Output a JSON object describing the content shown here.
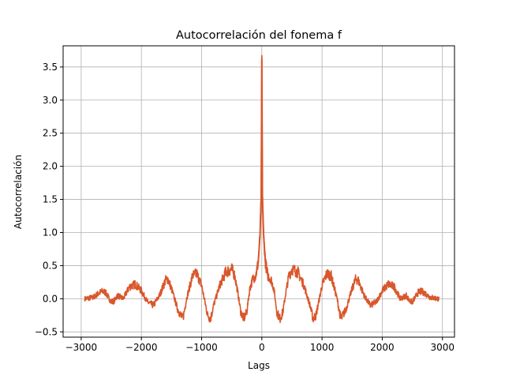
{
  "chart_data": {
    "type": "line",
    "title": "Autocorrelación del fonema f",
    "xlabel": "Lags",
    "ylabel": "Autocorrelación",
    "xlim": [
      -3300,
      3200
    ],
    "ylim": [
      -0.58,
      3.82
    ],
    "xticks": [
      -3000,
      -2000,
      -1000,
      0,
      1000,
      2000,
      3000
    ],
    "xtick_labels": [
      "−3000",
      "−2000",
      "−1000",
      "0",
      "1000",
      "2000",
      "3000"
    ],
    "yticks": [
      -0.5,
      0.0,
      0.5,
      1.0,
      1.5,
      2.0,
      2.5,
      3.0,
      3.5
    ],
    "ytick_labels": [
      "−0.5",
      "0.0",
      "0.5",
      "1.0",
      "1.5",
      "2.0",
      "2.5",
      "3.0",
      "3.5"
    ],
    "grid": true,
    "line_color": "#d9572b",
    "series": [
      {
        "name": "",
        "x": [
          -2940,
          -2800,
          -2700,
          -2650,
          -2600,
          -2500,
          -2450,
          -2400,
          -2300,
          -2200,
          -2100,
          -2000,
          -1900,
          -1800,
          -1700,
          -1600,
          -1560,
          -1500,
          -1400,
          -1320,
          -1300,
          -1250,
          -1150,
          -1080,
          -1000,
          -900,
          -850,
          -800,
          -700,
          -600,
          -500,
          -450,
          -400,
          -350,
          -300,
          -250,
          -200,
          -150,
          -100,
          -60,
          -30,
          -10,
          0,
          10,
          30,
          60,
          100,
          150,
          200,
          250,
          300,
          350,
          400,
          450,
          500,
          600,
          700,
          800,
          850,
          900,
          1000,
          1080,
          1150,
          1250,
          1300,
          1320,
          1400,
          1500,
          1560,
          1600,
          1700,
          1800,
          1900,
          2000,
          2100,
          2200,
          2300,
          2400,
          2450,
          2500,
          2600,
          2650,
          2700,
          2800,
          2940
        ],
        "y": [
          0.0,
          0.02,
          0.09,
          0.11,
          0.1,
          -0.05,
          -0.03,
          0.05,
          0.0,
          0.18,
          0.22,
          0.12,
          -0.05,
          -0.1,
          0.05,
          0.28,
          0.3,
          0.15,
          -0.15,
          -0.3,
          -0.25,
          0.0,
          0.35,
          0.38,
          0.2,
          -0.25,
          -0.3,
          -0.1,
          0.2,
          0.4,
          0.45,
          0.35,
          0.1,
          -0.2,
          -0.3,
          -0.2,
          0.15,
          0.3,
          0.35,
          0.55,
          0.95,
          1.55,
          3.63,
          1.55,
          0.95,
          0.55,
          0.35,
          0.3,
          0.15,
          -0.2,
          -0.3,
          -0.2,
          0.1,
          0.35,
          0.45,
          0.4,
          0.2,
          -0.1,
          -0.3,
          -0.25,
          0.2,
          0.38,
          0.35,
          0.0,
          -0.25,
          -0.3,
          -0.15,
          0.15,
          0.3,
          0.28,
          0.05,
          -0.1,
          -0.05,
          0.12,
          0.22,
          0.18,
          0.0,
          0.05,
          -0.03,
          -0.05,
          0.1,
          0.11,
          0.09,
          0.02,
          0.0
        ]
      }
    ]
  }
}
